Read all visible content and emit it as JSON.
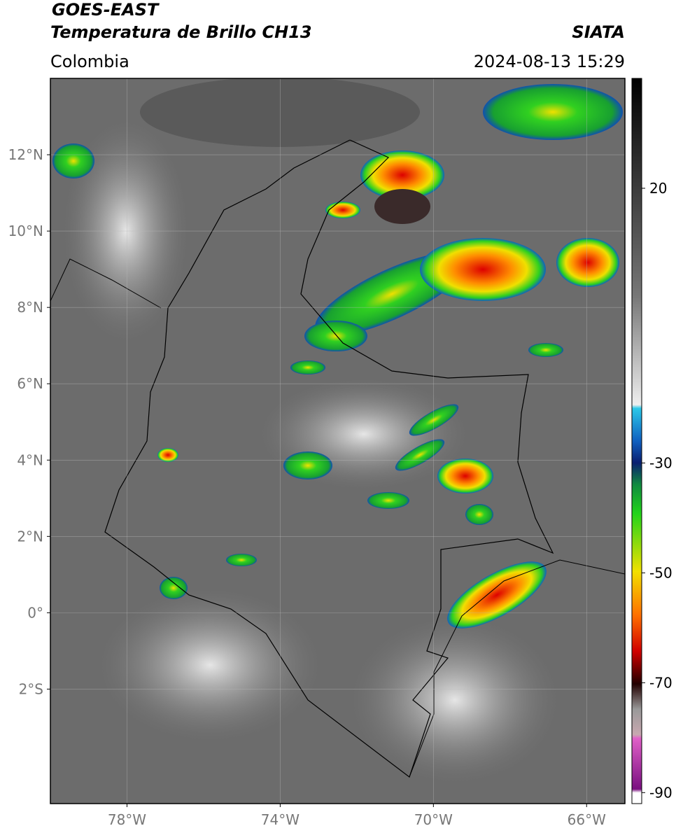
{
  "header": {
    "title": "GOES-EAST",
    "subtitle": "Temperatura de Brillo CH13",
    "source": "SIATA",
    "region": "Colombia",
    "timestamp": "2024-08-13 15:29"
  },
  "map": {
    "lon_range": [
      -80,
      -65
    ],
    "lat_range": [
      -5,
      14
    ],
    "lat_ticks": [
      {
        "value": 12,
        "label": "12°N"
      },
      {
        "value": 10,
        "label": "10°N"
      },
      {
        "value": 8,
        "label": "8°N"
      },
      {
        "value": 6,
        "label": "6°N"
      },
      {
        "value": 4,
        "label": "4°N"
      },
      {
        "value": 2,
        "label": "2°N"
      },
      {
        "value": 0,
        "label": "0°"
      },
      {
        "value": -2,
        "label": "2°S"
      }
    ],
    "lon_ticks": [
      {
        "value": -78,
        "label": "78°W"
      },
      {
        "value": -74,
        "label": "74°W"
      },
      {
        "value": -70,
        "label": "70°W"
      },
      {
        "value": -66,
        "label": "66°W"
      }
    ]
  },
  "colorbar": {
    "range": [
      -92,
      40
    ],
    "ticks": [
      20,
      -30,
      -50,
      -70,
      -90
    ]
  }
}
